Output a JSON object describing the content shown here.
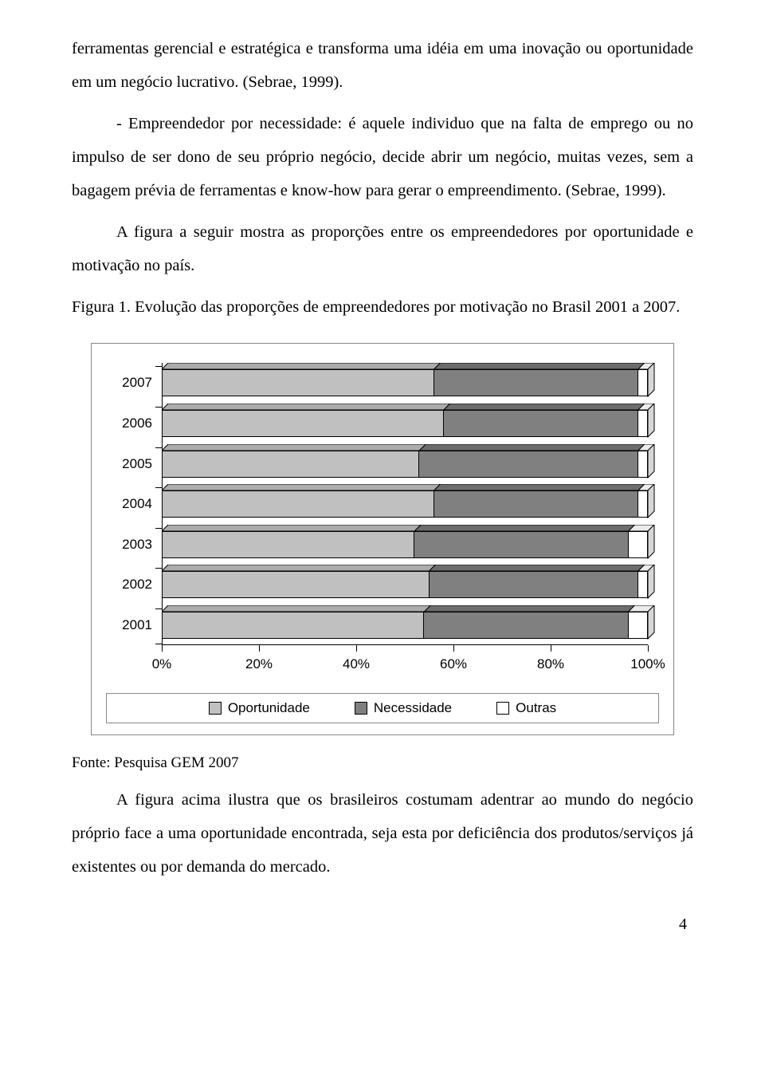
{
  "paragraphs": {
    "p1": "ferramentas gerencial e estratégica e transforma uma idéia em uma inovação ou oportunidade em um negócio lucrativo. (Sebrae, 1999).",
    "p2": "- Empreendedor por necessidade: é aquele individuo que na falta de emprego ou no impulso de ser dono de seu próprio negócio, decide abrir um negócio, muitas vezes, sem a bagagem prévia de ferramentas e know-how para gerar o empreendimento. (Sebrae, 1999).",
    "p3": "A figura a seguir mostra as proporções entre os empreendedores por oportunidade e motivação no país.",
    "p4": "Figura 1. Evolução das proporções de empreendedores por motivação no Brasil 2001 a 2007.",
    "fonte": "Fonte: Pesquisa GEM 2007",
    "p5": "A figura acima ilustra que os brasileiros costumam adentrar ao mundo do negócio próprio face a uma oportunidade encontrada, seja esta por deficiência dos produtos/serviços já existentes ou por demanda do mercado."
  },
  "page_number": "4",
  "chart": {
    "type": "stacked-horizontal-bar-3d",
    "years": [
      "2007",
      "2006",
      "2005",
      "2004",
      "2003",
      "2002",
      "2001"
    ],
    "x_ticks": [
      "0%",
      "20%",
      "40%",
      "60%",
      "80%",
      "100%"
    ],
    "x_tick_positions": [
      0,
      20,
      40,
      60,
      80,
      100
    ],
    "series": [
      "Oportunidade",
      "Necessidade",
      "Outras"
    ],
    "series_colors": [
      "#c0c0c0",
      "#808080",
      "#ffffff"
    ],
    "data": {
      "2007": [
        56,
        42,
        2
      ],
      "2006": [
        58,
        40,
        2
      ],
      "2005": [
        53,
        45,
        2
      ],
      "2004": [
        56,
        42,
        2
      ],
      "2003": [
        52,
        44,
        4
      ],
      "2002": [
        55,
        43,
        2
      ],
      "2001": [
        54,
        42,
        4
      ]
    },
    "legend_labels": [
      "Oportunidade",
      "Necessidade",
      "Outras"
    ],
    "background_color": "#ffffff",
    "axis_color": "#000000",
    "label_fontsize": 17,
    "label_font": "Arial"
  }
}
